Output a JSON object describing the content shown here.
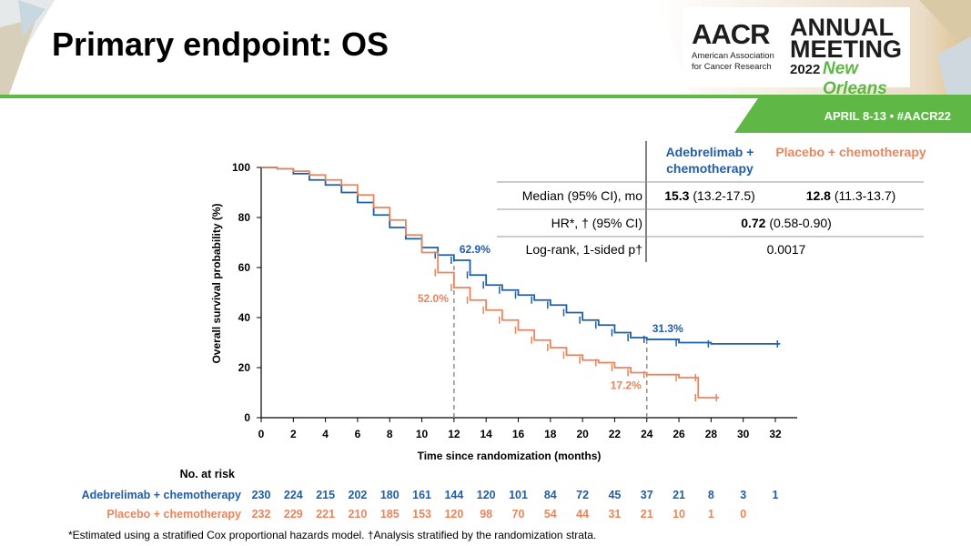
{
  "slide": {
    "title": "Primary endpoint: OS",
    "logo": {
      "org": "AACR",
      "org_full_line1": "American Association",
      "org_full_line2": "for Cancer Research",
      "annual": "ANNUAL",
      "meeting": "MEETING",
      "year": "2022",
      "city": "New Orleans"
    },
    "date_banner": "APRIL 8-13 • #AACR22",
    "footnote": "*Estimated using a stratified Cox proportional hazards model. †Analysis stratified by the randomization strata.",
    "colors": {
      "blue": "#1f5ea8",
      "orange": "#e9845d",
      "green": "#5fb846"
    }
  },
  "summary_table": {
    "header_blue": "Adebrelimab + chemotherapy",
    "header_orange": "Placebo + chemotherapy",
    "median_label": "Median (95% CI), mo",
    "median_blue_bold": "15.3",
    "median_blue_ci": "(13.2-17.5)",
    "median_orange_bold": "12.8",
    "median_orange_ci": "(11.3-13.7)",
    "hr_label": "HR*, † (95% CI)",
    "hr_bold": "0.72",
    "hr_ci": "(0.58-0.90)",
    "logrank_label": "Log-rank, 1-sided p†",
    "logrank_value": "0.0017"
  },
  "risk_table": {
    "title": "No. at risk",
    "rows": [
      {
        "label": "Adebrelimab + chemotherapy",
        "values": [
          "230",
          "224",
          "215",
          "202",
          "180",
          "161",
          "144",
          "120",
          "101",
          "84",
          "72",
          "45",
          "37",
          "21",
          "8",
          "3",
          "1"
        ]
      },
      {
        "label": "Placebo + chemotherapy",
        "values": [
          "232",
          "229",
          "221",
          "210",
          "185",
          "153",
          "120",
          "98",
          "70",
          "54",
          "44",
          "31",
          "21",
          "10",
          "1",
          "0"
        ]
      }
    ]
  },
  "chart_data": {
    "type": "line",
    "subtype": "kaplan-meier",
    "xlabel": "Time since randomization (months)",
    "ylabel": "Overall survival probability (%)",
    "xlim": [
      0,
      32
    ],
    "ylim": [
      0,
      100
    ],
    "x_ticks": [
      0,
      2,
      4,
      6,
      8,
      10,
      12,
      14,
      16,
      18,
      20,
      22,
      24,
      26,
      28,
      30,
      32
    ],
    "y_ticks": [
      0,
      20,
      40,
      60,
      80,
      100
    ],
    "reference_lines_x": [
      12,
      24
    ],
    "series": [
      {
        "name": "Adebrelimab + chemotherapy",
        "color": "#1f5ea8",
        "points": [
          [
            0,
            100
          ],
          [
            1,
            99.5
          ],
          [
            2,
            97.5
          ],
          [
            3,
            95
          ],
          [
            4,
            93
          ],
          [
            5,
            90
          ],
          [
            6,
            86
          ],
          [
            7,
            81
          ],
          [
            8,
            76
          ],
          [
            9,
            71.5
          ],
          [
            10,
            68
          ],
          [
            11,
            65
          ],
          [
            12,
            62.9
          ],
          [
            13,
            57
          ],
          [
            14,
            53
          ],
          [
            15,
            51
          ],
          [
            16,
            49
          ],
          [
            17,
            47
          ],
          [
            18,
            45
          ],
          [
            19,
            42
          ],
          [
            20,
            39
          ],
          [
            21,
            37
          ],
          [
            22,
            34
          ],
          [
            23,
            32
          ],
          [
            24,
            31.3
          ],
          [
            26,
            30
          ],
          [
            28,
            29.5
          ],
          [
            32.3,
            29.5
          ]
        ],
        "annotations": [
          {
            "x": 12,
            "y": 62.9,
            "label": "62.9%"
          },
          {
            "x": 24,
            "y": 31.3,
            "label": "31.3%"
          }
        ]
      },
      {
        "name": "Placebo + chemotherapy",
        "color": "#e9845d",
        "points": [
          [
            0,
            100
          ],
          [
            1,
            99.5
          ],
          [
            2,
            98.5
          ],
          [
            3,
            97
          ],
          [
            4,
            95
          ],
          [
            5,
            93
          ],
          [
            6,
            89
          ],
          [
            7,
            84
          ],
          [
            8,
            79
          ],
          [
            9,
            73
          ],
          [
            10,
            66
          ],
          [
            11,
            58
          ],
          [
            12,
            52
          ],
          [
            13,
            47
          ],
          [
            14,
            43
          ],
          [
            15,
            39
          ],
          [
            16,
            35
          ],
          [
            17,
            31
          ],
          [
            18,
            28
          ],
          [
            19,
            25
          ],
          [
            20,
            23
          ],
          [
            21,
            22
          ],
          [
            22,
            20
          ],
          [
            23,
            18
          ],
          [
            24,
            17.2
          ],
          [
            26,
            16
          ],
          [
            27.2,
            16
          ],
          [
            27.2,
            8
          ],
          [
            28.5,
            8
          ]
        ],
        "annotations": [
          {
            "x": 12,
            "y": 52.0,
            "label": "52.0%"
          },
          {
            "x": 24,
            "y": 17.2,
            "label": "17.2%"
          }
        ]
      }
    ]
  }
}
